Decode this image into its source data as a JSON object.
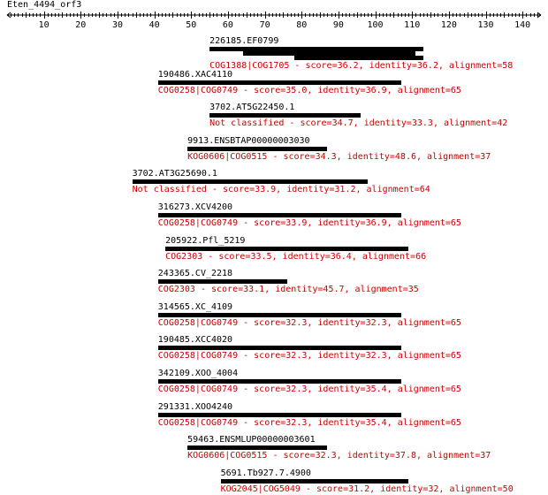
{
  "query": {
    "name": "Eten_4494_orf3",
    "axis_ticks": [
      "10",
      "20",
      "30",
      "40",
      "50",
      "60",
      "70",
      "80",
      "90",
      "100",
      "110",
      "120",
      "130",
      "140"
    ],
    "axis_max": 145
  },
  "colors": {
    "bar": "#000000",
    "label": "#000000",
    "description": "#cc0000"
  },
  "hits": [
    {
      "label": "226185.EF0799",
      "description": "COG1388|COG1705 - score=36.2, identity=36.2, alignment=58",
      "segments": [
        [
          55,
          113
        ],
        [
          64,
          111
        ],
        [
          78,
          113
        ]
      ]
    },
    {
      "label": "190486.XAC4110",
      "description": "COG0258|COG0749 - score=35.0, identity=36.9, alignment=65",
      "segments": [
        [
          41,
          107
        ]
      ]
    },
    {
      "label": "3702.AT5G22450.1",
      "description": "Not classified - score=34.7, identity=33.3, alignment=42",
      "segments": [
        [
          55,
          96
        ]
      ]
    },
    {
      "label": "9913.ENSBTAP00000003030",
      "description": "KOG0606|COG0515 - score=34.3, identity=48.6, alignment=37",
      "segments": [
        [
          49,
          87
        ]
      ]
    },
    {
      "label": "3702.AT3G25690.1",
      "description": "Not classified - score=33.9, identity=31.2, alignment=64",
      "segments": [
        [
          34,
          98
        ]
      ]
    },
    {
      "label": "316273.XCV4200",
      "description": "COG0258|COG0749 - score=33.9, identity=36.9, alignment=65",
      "segments": [
        [
          41,
          107
        ]
      ]
    },
    {
      "label": "205922.Pfl_5219",
      "description": "COG2303 - score=33.5, identity=36.4, alignment=66",
      "segments": [
        [
          43,
          109
        ]
      ]
    },
    {
      "label": "243365.CV_2218",
      "description": "COG2303 - score=33.1, identity=45.7, alignment=35",
      "segments": [
        [
          41,
          76
        ]
      ]
    },
    {
      "label": "314565.XC_4109",
      "description": "COG0258|COG0749 - score=32.3, identity=32.3, alignment=65",
      "segments": [
        [
          41,
          107
        ]
      ]
    },
    {
      "label": "190485.XCC4020",
      "description": "COG0258|COG0749 - score=32.3, identity=32.3, alignment=65",
      "segments": [
        [
          41,
          107
        ]
      ]
    },
    {
      "label": "342109.XOO_4004",
      "description": "COG0258|COG0749 - score=32.3, identity=35.4, alignment=65",
      "segments": [
        [
          41,
          107
        ]
      ]
    },
    {
      "label": "291331.XOO4240",
      "description": "COG0258|COG0749 - score=32.3, identity=35.4, alignment=65",
      "segments": [
        [
          41,
          107
        ]
      ]
    },
    {
      "label": "59463.ENSMLUP00000003601",
      "description": "KOG0606|COG0515 - score=32.3, identity=37.8, alignment=37",
      "segments": [
        [
          49,
          87
        ]
      ]
    },
    {
      "label": "5691.Tb927.7.4900",
      "description": "KOG2045|COG5049 - score=31.2, identity=32, alignment=50",
      "segments": [
        [
          58,
          109
        ]
      ]
    }
  ]
}
